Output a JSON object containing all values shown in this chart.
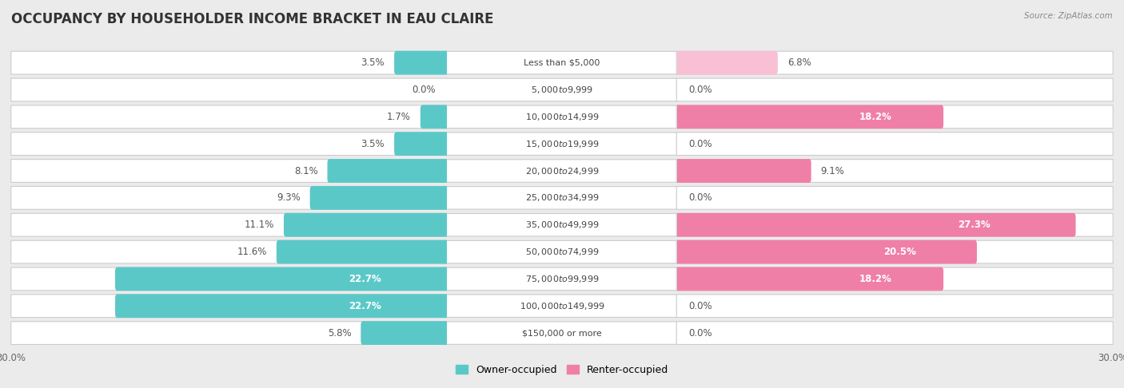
{
  "title": "OCCUPANCY BY HOUSEHOLDER INCOME BRACKET IN EAU CLAIRE",
  "source": "Source: ZipAtlas.com",
  "categories": [
    "Less than $5,000",
    "$5,000 to $9,999",
    "$10,000 to $14,999",
    "$15,000 to $19,999",
    "$20,000 to $24,999",
    "$25,000 to $34,999",
    "$35,000 to $49,999",
    "$50,000 to $74,999",
    "$75,000 to $99,999",
    "$100,000 to $149,999",
    "$150,000 or more"
  ],
  "owner_values": [
    3.5,
    0.0,
    1.7,
    3.5,
    8.1,
    9.3,
    11.1,
    11.6,
    22.7,
    22.7,
    5.8
  ],
  "renter_values": [
    6.8,
    0.0,
    18.2,
    0.0,
    9.1,
    0.0,
    27.3,
    20.5,
    18.2,
    0.0,
    0.0
  ],
  "owner_color": "#5bc8c8",
  "renter_color": "#f07fa8",
  "renter_color_light": "#f9c0d5",
  "background_color": "#ebebeb",
  "bar_bg_color": "#ffffff",
  "xlim": 30.0,
  "bar_height": 0.58,
  "legend_owner": "Owner-occupied",
  "legend_renter": "Renter-occupied",
  "title_fontsize": 12,
  "label_fontsize": 8.5,
  "category_fontsize": 8,
  "axis_label_fontsize": 8.5,
  "inside_label_threshold": 15.0
}
